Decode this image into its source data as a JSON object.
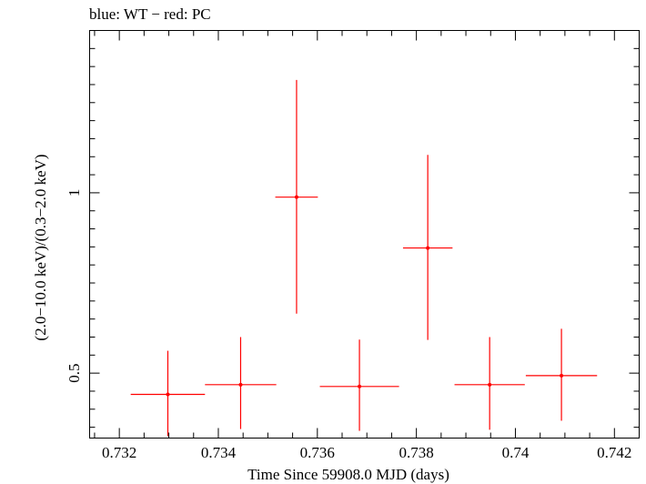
{
  "chart_data": {
    "type": "scatter",
    "title": "blue: WT − red: PC",
    "xlabel": "Time Since 59908.0 MJD (days)",
    "ylabel": "(2.0−10.0 keV)/(0.3−2.0 keV)",
    "xlim": [
      0.7314,
      0.7425
    ],
    "ylim": [
      0.32,
      1.45
    ],
    "xticks": [
      0.732,
      0.734,
      0.736,
      0.738,
      0.74,
      0.742
    ],
    "xtick_labels": [
      "0.732",
      "0.734",
      "0.736",
      "0.738",
      "0.74",
      "0.742"
    ],
    "yticks": [
      0.5,
      1
    ],
    "ytick_labels": [
      "0.5",
      "1"
    ],
    "grid": false,
    "series": [
      {
        "name": "PC",
        "color": "#ff0000",
        "points": [
          {
            "x": 0.73298,
            "y": 0.441,
            "xerr": 0.00075,
            "ylo": 0.325,
            "yhi": 0.562
          },
          {
            "x": 0.73445,
            "y": 0.468,
            "xerr": 0.00072,
            "ylo": 0.345,
            "yhi": 0.6
          },
          {
            "x": 0.73558,
            "y": 0.988,
            "xerr": 0.00043,
            "ylo": 0.665,
            "yhi": 1.313
          },
          {
            "x": 0.73685,
            "y": 0.463,
            "xerr": 0.0008,
            "ylo": 0.34,
            "yhi": 0.593
          },
          {
            "x": 0.73823,
            "y": 0.847,
            "xerr": 0.0005,
            "ylo": 0.592,
            "yhi": 1.105
          },
          {
            "x": 0.73948,
            "y": 0.468,
            "xerr": 0.00071,
            "ylo": 0.343,
            "yhi": 0.6
          },
          {
            "x": 0.74093,
            "y": 0.493,
            "xerr": 0.00072,
            "ylo": 0.368,
            "yhi": 0.623
          }
        ]
      }
    ]
  }
}
